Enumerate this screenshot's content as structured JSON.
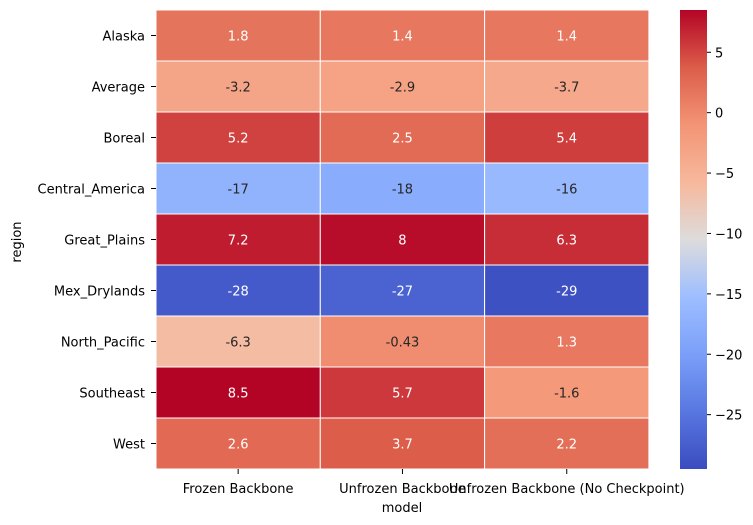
{
  "chart_data": {
    "type": "heatmap",
    "xlabel": "model",
    "ylabel": "region",
    "columns": [
      "Frozen Backbone",
      "Unfrozen Backbone",
      "Unfrozen Backbone (No Checkpoint)"
    ],
    "rows": [
      "Alaska",
      "Average",
      "Boreal",
      "Central_America",
      "Great_Plains",
      "Mex_Drylands",
      "North_Pacific",
      "Southeast",
      "West"
    ],
    "values": [
      [
        1.8,
        1.4,
        1.4
      ],
      [
        -3.2,
        -2.9,
        -3.7
      ],
      [
        5.2,
        2.5,
        5.4
      ],
      [
        -17,
        -18,
        -16
      ],
      [
        7.2,
        8,
        6.3
      ],
      [
        -28,
        -27,
        -29
      ],
      [
        -6.3,
        -0.43,
        1.3
      ],
      [
        8.5,
        5.7,
        -1.6
      ],
      [
        2.6,
        3.7,
        2.2
      ]
    ],
    "labels": [
      [
        "1.8",
        "1.4",
        "1.4"
      ],
      [
        "-3.2",
        "-2.9",
        "-3.7"
      ],
      [
        "5.2",
        "2.5",
        "5.4"
      ],
      [
        "-17",
        "-18",
        "-16"
      ],
      [
        "7.2",
        "8",
        "6.3"
      ],
      [
        "-28",
        "-27",
        "-29"
      ],
      [
        "-6.3",
        "-0.43",
        "1.3"
      ],
      [
        "8.5",
        "5.7",
        "-1.6"
      ],
      [
        "2.6",
        "3.7",
        "2.2"
      ]
    ],
    "colormap": "coolwarm",
    "vmin": -29.5,
    "vmax": 8.5,
    "colorbar_ticks": [
      5,
      0,
      -5,
      -10,
      -15,
      -20,
      -25
    ],
    "colorbar_tick_labels": [
      "5",
      "0",
      "−5",
      "−10",
      "−15",
      "−20",
      "−25"
    ]
  }
}
